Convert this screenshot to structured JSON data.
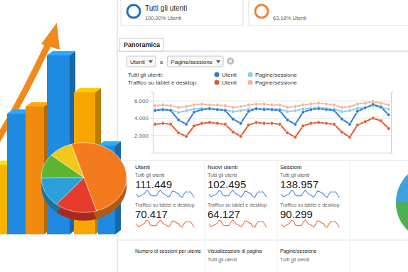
{
  "chart_data": {
    "type": "line",
    "segments": [
      "Tutti gli utenti:",
      "Traffico su tablet e desktop:"
    ],
    "categories": [
      null,
      null,
      null,
      null,
      null,
      null,
      null,
      null,
      null,
      null,
      null,
      null,
      null,
      null,
      null,
      null,
      null,
      null,
      null,
      null,
      null,
      null,
      null,
      null,
      null,
      null,
      null,
      null,
      null,
      null,
      null
    ],
    "series": [
      {
        "name": "Utenti",
        "color": "#2e7bcf",
        "marker": "circle",
        "values": [
          4900,
          5000,
          4900,
          3800,
          3300,
          4700,
          5000,
          5100,
          5000,
          4900,
          3900,
          3400,
          4800,
          5100,
          5000,
          5000,
          4900,
          3800,
          3300,
          4700,
          5000,
          5100,
          5000,
          4900,
          3900,
          3300,
          4800,
          5200,
          5600,
          5300,
          4400
        ]
      },
      {
        "name": "Utenti",
        "color": "#e5582a",
        "marker": "circle",
        "values": [
          3300,
          3400,
          3300,
          2300,
          1900,
          3100,
          3400,
          3500,
          3400,
          3300,
          2400,
          1900,
          3200,
          3500,
          3400,
          3400,
          3300,
          2300,
          1800,
          3100,
          3400,
          3500,
          3400,
          3300,
          2400,
          1800,
          3200,
          3600,
          4000,
          3700,
          2800
        ]
      },
      {
        "name": "Pagine/sessione",
        "color": "#86cdef",
        "marker": "circle",
        "axis": "y2",
        "values": [
          2.55,
          2.6,
          2.55,
          2.4,
          2.5,
          2.6,
          2.65,
          2.6,
          2.6,
          2.55,
          2.45,
          2.5,
          2.6,
          2.6,
          2.65,
          2.6,
          2.6,
          2.45,
          2.5,
          2.6,
          2.65,
          2.7,
          2.65,
          2.6,
          2.45,
          2.5,
          2.65,
          2.7,
          2.8,
          2.7,
          2.6
        ]
      },
      {
        "name": "Pagine/sessione",
        "color": "#f4b596",
        "marker": "circle",
        "axis": "y2",
        "values": [
          2.8,
          2.85,
          2.8,
          2.7,
          2.75,
          2.85,
          2.9,
          2.85,
          2.85,
          2.8,
          2.7,
          2.75,
          2.85,
          2.9,
          2.9,
          2.85,
          2.85,
          2.7,
          2.75,
          2.85,
          2.9,
          2.95,
          2.9,
          2.85,
          2.7,
          2.75,
          2.9,
          2.95,
          3.05,
          2.95,
          2.85
        ]
      }
    ],
    "ylim": [
      0,
      7000
    ],
    "yticks": [
      {
        "value": 2000,
        "label": "2.000"
      },
      {
        "value": 4000,
        "label": "4.000"
      },
      {
        "value": 6000,
        "label": "6.000"
      }
    ],
    "y2lim": [
      0,
      3.6
    ],
    "y2ticks": [],
    "grid": true,
    "legend": "top",
    "tick_labels": "y"
  },
  "dashboard": {
    "segment_boxes": [
      {
        "title": "Tutti gli utenti",
        "subtitle": "100,00% Utenti",
        "color": "#1f6fb8"
      },
      {
        "subtitle": "63,18% Utenti",
        "color": "#f08030"
      }
    ],
    "tab": "Panoramica",
    "selectors": {
      "first": "Utenti",
      "connector": "e",
      "second": "Pagine/sessione"
    },
    "metrics": [
      {
        "title": "Utenti",
        "rows": [
          {
            "segment": "Tutti gli utenti",
            "value": "111.449"
          },
          {
            "segment": "Traffico su tablet e desktop",
            "value": "70.417"
          }
        ]
      },
      {
        "title": "Nuovi utenti",
        "rows": [
          {
            "segment": "Tutti gli utenti",
            "value": "102.495"
          },
          {
            "segment": "Traffico su tablet e desktop",
            "value": "64.127"
          }
        ]
      },
      {
        "title": "Sessioni",
        "rows": [
          {
            "segment": "Tutti gli utenti",
            "value": "138.957"
          },
          {
            "segment": "Traffico su tablet e desktop",
            "value": "90.299"
          }
        ]
      }
    ],
    "metrics_row2": [
      {
        "title": "Numero di sessioni per utente",
        "rows": []
      },
      {
        "title": "Visualizzazioni di pagina",
        "rows": [
          {
            "segment": "Tutti gli utenti"
          }
        ]
      },
      {
        "title": "Pagine/sessione",
        "rows": [
          {
            "segment": "Tutti gli utenti"
          }
        ]
      }
    ]
  }
}
